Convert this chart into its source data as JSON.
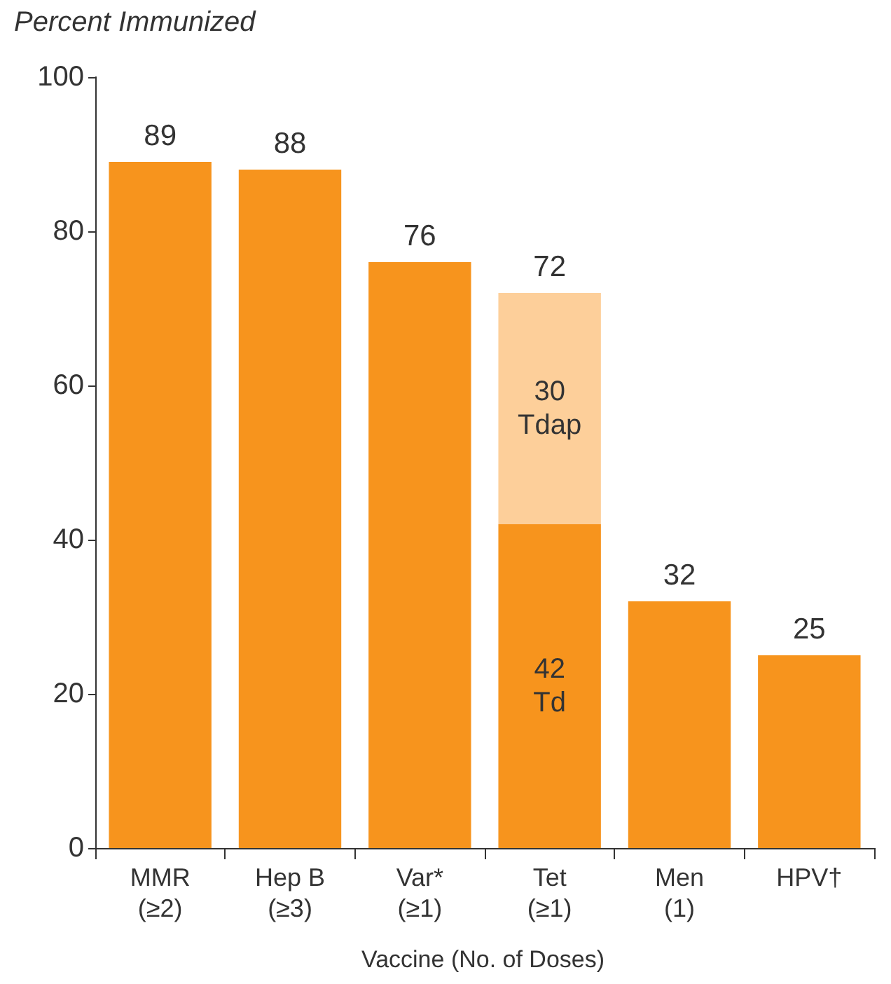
{
  "chart_data": {
    "type": "bar",
    "stacked": true,
    "ylabel": "Percent Immunized",
    "xlabel": "Vaccine (No. of Doses)",
    "categories": [
      "MMR\n(≥2)",
      "Hep B\n(≥3)",
      "Var*\n(≥1)",
      "Tet\n(≥1)",
      "Men\n(1)",
      "HPV†"
    ],
    "series": [
      {
        "color": "#f7941d",
        "values": [
          89,
          88,
          76,
          42,
          32,
          25
        ],
        "value_labels": [
          null,
          null,
          null,
          "42\nTd",
          null,
          null
        ]
      },
      {
        "color": "#fdcf9a",
        "values": [
          null,
          null,
          null,
          30,
          null,
          null
        ],
        "value_labels": [
          null,
          null,
          null,
          "30\nTdap",
          null,
          null
        ]
      }
    ],
    "totals": [
      "89",
      "88",
      "76",
      "72",
      "32",
      "25"
    ],
    "ylim": [
      0,
      100
    ],
    "yticks": [
      0,
      20,
      40,
      60,
      80,
      100
    ],
    "grid": false
  }
}
